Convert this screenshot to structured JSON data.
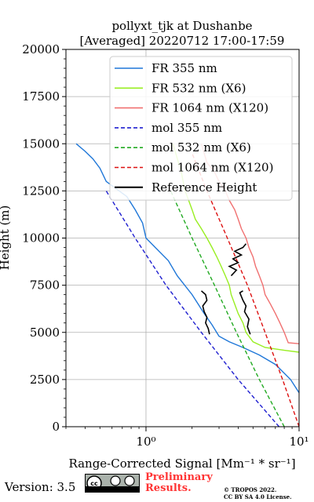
{
  "chart_data": {
    "type": "line",
    "title": "pollyxt_tjk at Dushanbe",
    "subtitle": "[Averaged] 20220712 17:00-17:59",
    "xlabel": "Range-Corrected Signal [Mm⁻¹ * sr⁻¹]",
    "ylabel": "Height (m)",
    "xscale": "log",
    "xlim": [
      0.3,
      10
    ],
    "ylim": [
      0,
      20000
    ],
    "xticks": [
      "10⁰",
      "10¹"
    ],
    "yticks": [
      "0",
      "2500",
      "5000",
      "7500",
      "10000",
      "12500",
      "15000",
      "17500",
      "20000"
    ],
    "grid": true,
    "legend_position": "top-right",
    "series": [
      {
        "name": "FR 355 nm",
        "color": "#1f77d8",
        "style": "solid",
        "x": [
          10,
          8.8,
          7.0,
          5.5,
          4.3,
          3.5,
          3.0,
          2.7,
          2.4,
          2.0,
          1.6,
          1.4,
          1.15,
          1.0,
          0.95,
          0.85,
          0.75,
          0.55,
          0.5,
          0.45,
          0.4,
          0.35
        ],
        "y": [
          1800,
          2500,
          3300,
          3800,
          4200,
          4500,
          4800,
          5400,
          6000,
          7000,
          8000,
          8800,
          9500,
          10000,
          10800,
          11500,
          12200,
          13000,
          13700,
          14200,
          14600,
          15000
        ]
      },
      {
        "name": "FR 532 nm (X6)",
        "color": "#99ee22",
        "style": "solid",
        "x": [
          10,
          8.0,
          6.0,
          5.0,
          4.5,
          4.3,
          4.0,
          3.8,
          3.6,
          3.5,
          3.3,
          3.1,
          2.9,
          2.7,
          2.5,
          2.3,
          2.1,
          2.0,
          1.9,
          1.8,
          1.7,
          1.5
        ],
        "y": [
          3950,
          4050,
          4200,
          4500,
          5000,
          5500,
          6000,
          6500,
          7000,
          7500,
          8000,
          8500,
          9000,
          9500,
          10000,
          10500,
          11000,
          11500,
          12000,
          12500,
          13500,
          15000
        ]
      },
      {
        "name": "FR 1064 nm (X120)",
        "color": "#f07070",
        "style": "solid",
        "x": [
          10,
          8.5,
          8.0,
          7.5,
          7.0,
          6.5,
          6.0,
          5.8,
          5.5,
          5.2,
          5.0,
          4.7,
          4.5,
          4.2,
          4.0,
          3.8,
          3.5,
          3.3,
          3.0,
          2.8,
          2.5,
          2.3
        ],
        "y": [
          4400,
          4450,
          5000,
          5500,
          6000,
          6500,
          7000,
          7500,
          8000,
          8500,
          9000,
          9500,
          10000,
          10500,
          11000,
          11500,
          12000,
          12500,
          13000,
          13500,
          14000,
          15000
        ]
      },
      {
        "name": "mol 355 nm",
        "color": "#1f1fd0",
        "style": "dashed",
        "x": [
          7.4,
          4.0,
          2.3,
          1.35,
          0.85,
          0.55
        ],
        "y": [
          0,
          2500,
          5000,
          7500,
          10000,
          12500
        ]
      },
      {
        "name": "mol 532 nm (X6)",
        "color": "#22aa22",
        "style": "dashed",
        "x": [
          8.0,
          5.5,
          3.9,
          2.8,
          2.0,
          1.45
        ],
        "y": [
          0,
          2500,
          5000,
          7500,
          10000,
          12500
        ]
      },
      {
        "name": "mol 1064 nm (X120)",
        "color": "#dd1111",
        "style": "dashed",
        "x": [
          10.0,
          7.8,
          6.0,
          4.6,
          3.4,
          2.5,
          2.0
        ],
        "y": [
          0,
          2500,
          5000,
          7500,
          10000,
          12500,
          14500
        ]
      },
      {
        "name": "Reference Height",
        "color": "#000000",
        "style": "solid",
        "segments": [
          {
            "x": [
              2.6,
              2.55,
              2.45,
              2.5,
              2.4,
              2.35,
              2.5,
              2.45,
              2.3
            ],
            "y": [
              4900,
              5200,
              5500,
              5800,
              6100,
              6400,
              6700,
              7000,
              7200
            ]
          },
          {
            "x": [
              4.8,
              4.6,
              4.7,
              4.4,
              4.5,
              4.3,
              4.2,
              4.1,
              4.3
            ],
            "y": [
              4900,
              5300,
              5700,
              6100,
              6400,
              6700,
              6900,
              7100,
              7200
            ]
          },
          {
            "x": [
              3.6,
              3.9,
              3.5,
              4.0,
              3.7,
              4.2,
              3.8,
              4.3,
              4.5
            ],
            "y": [
              8000,
              8300,
              8500,
              8700,
              8900,
              9100,
              9300,
              9500,
              9700
            ]
          }
        ]
      }
    ]
  },
  "footer": {
    "version": "Version: 3.5",
    "license_badge_text": "cc by sa",
    "preliminary_line1": "Preliminary",
    "preliminary_line2": "Results.",
    "copyright_line1": "© TROPOS 2022.",
    "copyright_line2": "CC BY SA 4.0 License."
  }
}
